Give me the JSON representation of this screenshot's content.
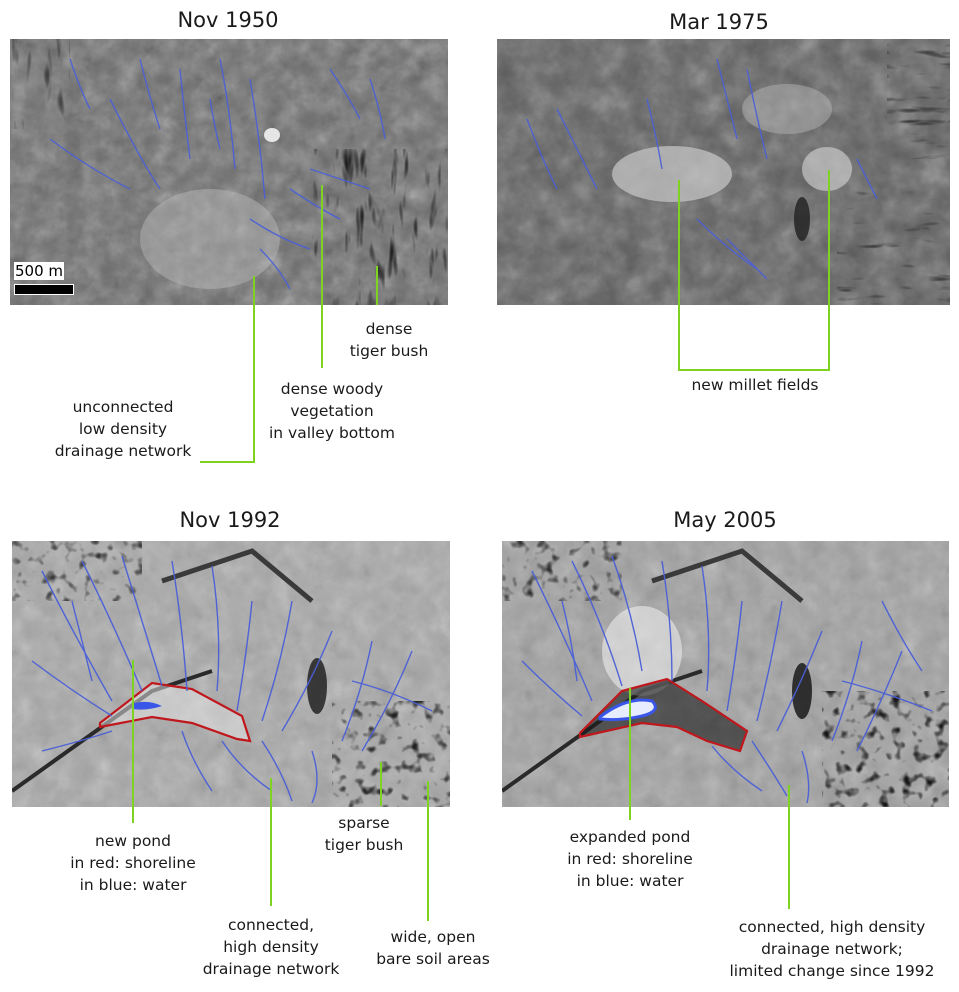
{
  "panels": [
    {
      "title": "Nov 1950"
    },
    {
      "title": "Mar 1975"
    },
    {
      "title": "Nov 1992"
    },
    {
      "title": "May 2005"
    }
  ],
  "scale_bar": "500 m",
  "annotations": {
    "p1_dense_tiger_bush": [
      "dense",
      "tiger bush"
    ],
    "p1_dense_woody": [
      "dense woody",
      "vegetation",
      "in valley bottom"
    ],
    "p1_unconnected": [
      "unconnected",
      "low density",
      "drainage network"
    ],
    "p2_millet": [
      "new millet fields"
    ],
    "p3_new_pond": [
      "new pond",
      "in red: shoreline",
      "in blue: water"
    ],
    "p3_connected": [
      "connected,",
      "high density",
      "drainage network"
    ],
    "p3_sparse": [
      "sparse",
      "tiger bush"
    ],
    "p3_wide_open": [
      "wide, open",
      "bare soil areas"
    ],
    "p4_expanded_pond": [
      "expanded pond",
      "in red: shoreline",
      "in blue: water"
    ],
    "p4_connected": [
      "connected, high density",
      "drainage network;",
      "limited change since 1992"
    ]
  },
  "colors": {
    "leader_line": "#7ed321",
    "drainage": "#4a5fd8",
    "shoreline": "#c0171c",
    "water": "#3a56e8"
  }
}
